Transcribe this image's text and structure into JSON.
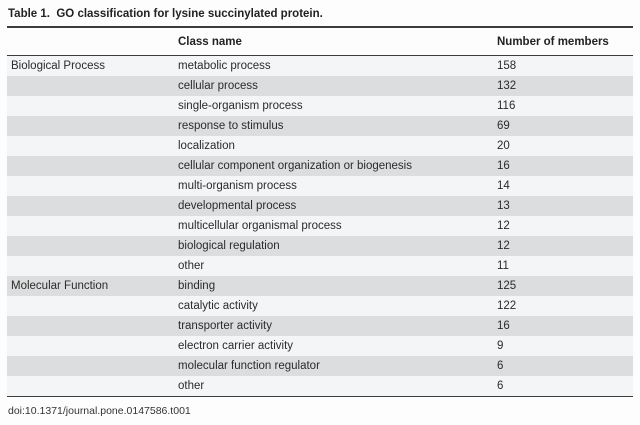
{
  "title": "Table 1.  GO classification for lysine succinylated protein.",
  "footer": "doi:10.1371/journal.pone.0147586.t001",
  "colors": {
    "rule": "#3d3d3d",
    "row_shaded": "#dcddde",
    "row_plain": "#f4f5f6",
    "text": "#2b2b2b"
  },
  "table": {
    "headers": {
      "category": "",
      "class_name": "Class name",
      "members": "Number of members"
    },
    "rows": [
      {
        "category": "Biological Process",
        "class_name": "metabolic process",
        "members": "158"
      },
      {
        "category": "",
        "class_name": "cellular process",
        "members": "132"
      },
      {
        "category": "",
        "class_name": "single-organism process",
        "members": "116"
      },
      {
        "category": "",
        "class_name": "response to stimulus",
        "members": "69"
      },
      {
        "category": "",
        "class_name": "localization",
        "members": "20"
      },
      {
        "category": "",
        "class_name": "cellular component organization or biogenesis",
        "members": "16"
      },
      {
        "category": "",
        "class_name": "multi-organism process",
        "members": "14"
      },
      {
        "category": "",
        "class_name": "developmental process",
        "members": "13"
      },
      {
        "category": "",
        "class_name": "multicellular organismal process",
        "members": "12"
      },
      {
        "category": "",
        "class_name": "biological regulation",
        "members": "12"
      },
      {
        "category": "",
        "class_name": "other",
        "members": "11"
      },
      {
        "category": "Molecular Function",
        "class_name": "binding",
        "members": "125"
      },
      {
        "category": "",
        "class_name": "catalytic activity",
        "members": "122"
      },
      {
        "category": "",
        "class_name": "transporter activity",
        "members": "16"
      },
      {
        "category": "",
        "class_name": "electron carrier activity",
        "members": "9"
      },
      {
        "category": "",
        "class_name": "molecular function regulator",
        "members": "6"
      },
      {
        "category": "",
        "class_name": "other",
        "members": "6"
      }
    ]
  }
}
